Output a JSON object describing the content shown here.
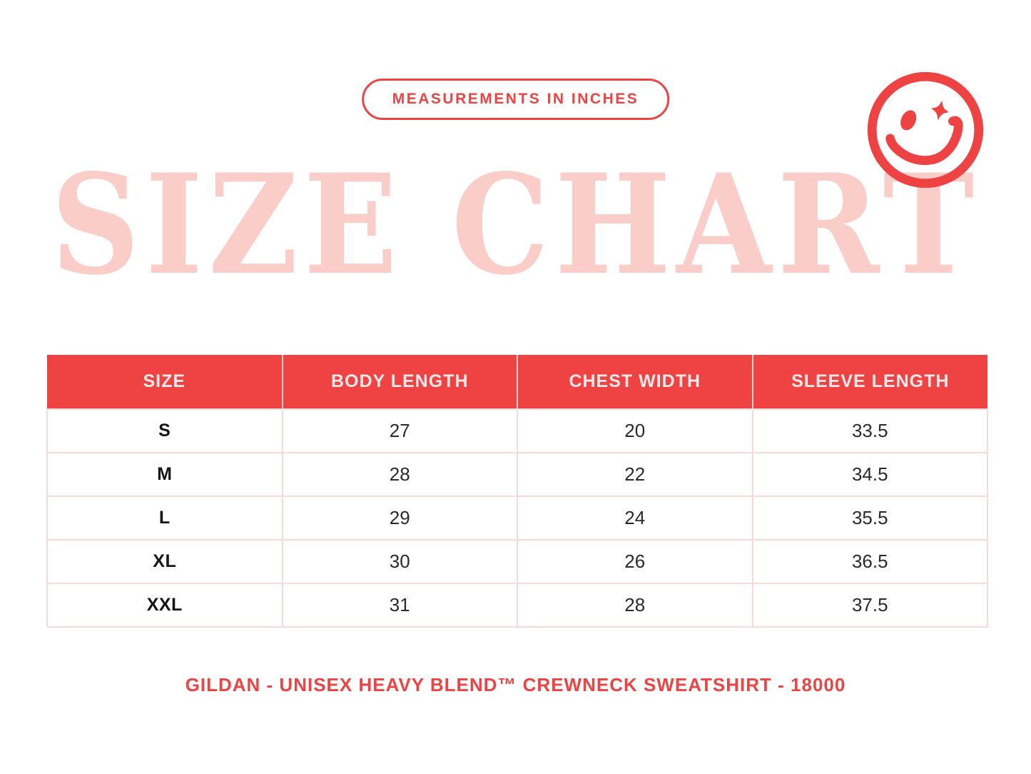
{
  "badge": {
    "label": "MEASUREMENTS IN INCHES"
  },
  "title": "SIZE CHART",
  "icons": {
    "smiley": "winking-smiley-face-with-sparkle-eye"
  },
  "colors": {
    "accent_red": "#EF4343",
    "title_pink": "#FACDC8",
    "table_border_pink": "#F6DBD8",
    "header_text": "#FCEAEA",
    "body_text": "#2A2A2A",
    "background": "#FFFFFF"
  },
  "table": {
    "headers": [
      "SIZE",
      "BODY LENGTH",
      "CHEST WIDTH",
      "SLEEVE LENGTH"
    ],
    "rows": [
      [
        "S",
        "27",
        "20",
        "33.5"
      ],
      [
        "M",
        "28",
        "22",
        "34.5"
      ],
      [
        "L",
        "29",
        "24",
        "35.5"
      ],
      [
        "XL",
        "30",
        "26",
        "36.5"
      ],
      [
        "XXL",
        "31",
        "28",
        "37.5"
      ]
    ]
  },
  "caption": {
    "label": "GILDAN - UNISEX HEAVY BLEND™ CREWNECK SWEATSHIRT - 18000"
  },
  "chart_data": {
    "type": "table",
    "title": "SIZE CHART",
    "subtitle": "MEASUREMENTS IN INCHES",
    "columns": [
      "SIZE",
      "BODY LENGTH",
      "CHEST WIDTH",
      "SLEEVE LENGTH"
    ],
    "units": "inches",
    "rows": [
      {
        "size": "S",
        "body_length": 27,
        "chest_width": 20,
        "sleeve_length": 33.5
      },
      {
        "size": "M",
        "body_length": 28,
        "chest_width": 22,
        "sleeve_length": 34.5
      },
      {
        "size": "L",
        "body_length": 29,
        "chest_width": 24,
        "sleeve_length": 35.5
      },
      {
        "size": "XL",
        "body_length": 30,
        "chest_width": 26,
        "sleeve_length": 36.5
      },
      {
        "size": "XXL",
        "body_length": 31,
        "chest_width": 28,
        "sleeve_length": 37.5
      }
    ],
    "footnote": "GILDAN - UNISEX HEAVY BLEND™ CREWNECK SWEATSHIRT - 18000"
  }
}
